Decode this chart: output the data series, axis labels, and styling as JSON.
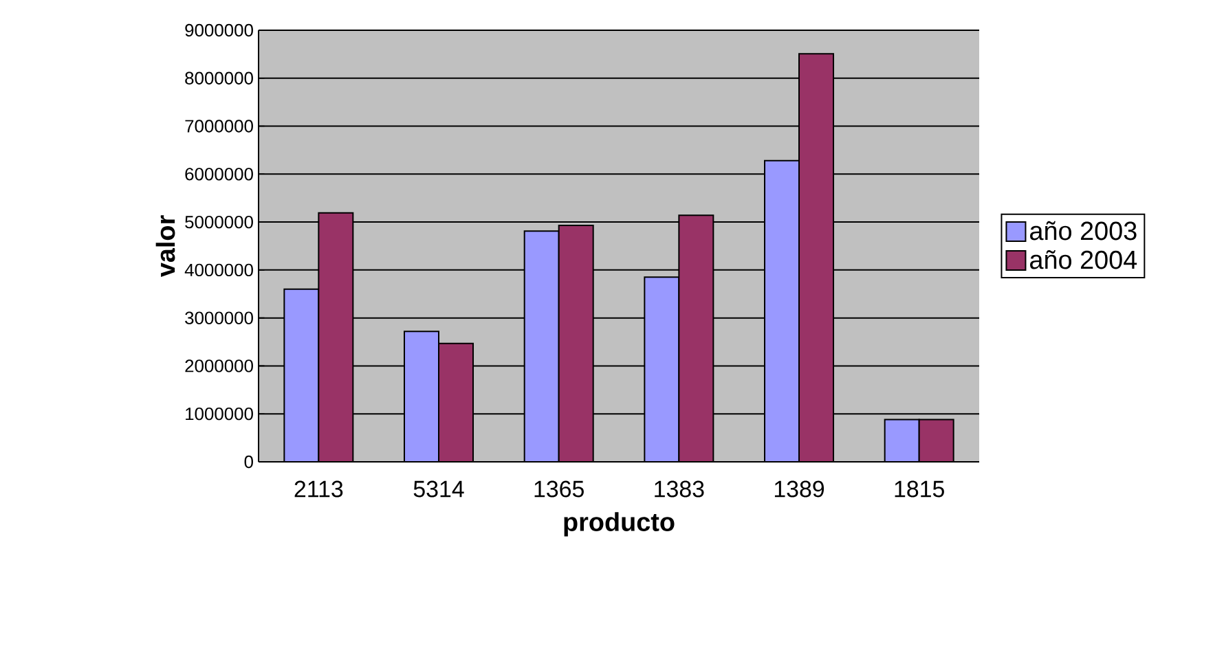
{
  "chart_data": {
    "type": "bar",
    "xlabel": "producto",
    "ylabel": "valor",
    "categories": [
      "2113",
      "5314",
      "1365",
      "1383",
      "1389",
      "1815"
    ],
    "series": [
      {
        "name": "año 2003",
        "color": "#9999ff",
        "values": [
          3600000,
          2720000,
          4810000,
          3850000,
          6280000,
          880000
        ]
      },
      {
        "name": "año 2004",
        "color": "#993366",
        "values": [
          5190000,
          2470000,
          4930000,
          5140000,
          8510000,
          880000
        ]
      }
    ],
    "ylim": [
      0,
      9000000
    ],
    "yticks": [
      0,
      1000000,
      2000000,
      3000000,
      4000000,
      5000000,
      6000000,
      7000000,
      8000000,
      9000000
    ],
    "grid": "y",
    "legend": "right"
  }
}
